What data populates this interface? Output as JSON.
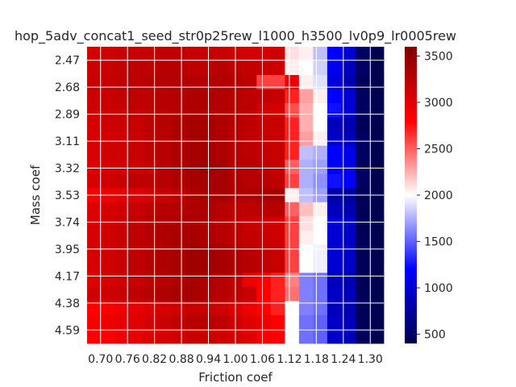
{
  "chart_data": {
    "type": "heatmap",
    "title": "hop_5adv_concat1_seed_str0p25rew_l1000_h3500_lv0p9_lr0005rew",
    "xlabel": "Friction coef",
    "ylabel": "Mass coef",
    "x_tick_labels": [
      "0.70",
      "0.76",
      "0.82",
      "0.88",
      "0.94",
      "1.00",
      "1.06",
      "1.12",
      "1.18",
      "1.24",
      "1.30"
    ],
    "y_tick_labels": [
      "2.47",
      "2.68",
      "2.89",
      "3.11",
      "3.32",
      "3.53",
      "3.74",
      "3.95",
      "4.17",
      "4.38",
      "4.59"
    ],
    "colorscale": "seismic",
    "clim": [
      400,
      3600
    ],
    "colorbar_ticks": [
      500,
      1000,
      1500,
      2000,
      2500,
      3000,
      3500
    ],
    "grid": true,
    "matrix": [
      [
        3080,
        3100,
        3150,
        3150,
        3150,
        3200,
        3200,
        3150,
        3150,
        3150,
        3100,
        3080,
        3050,
        3100,
        2100,
        2050,
        1800,
        1200,
        1000,
        500,
        420
      ],
      [
        3120,
        3150,
        3180,
        3200,
        3200,
        3250,
        3250,
        3200,
        3200,
        3250,
        3200,
        3180,
        3150,
        3100,
        2050,
        2000,
        1850,
        1100,
        900,
        500,
        420
      ],
      [
        3150,
        3160,
        3200,
        3220,
        3250,
        3280,
        3280,
        3280,
        3280,
        3280,
        3250,
        3200,
        2600,
        2600,
        2900,
        2050,
        1900,
        1050,
        850,
        450,
        420
      ],
      [
        3120,
        3150,
        3180,
        3200,
        3200,
        3250,
        3280,
        3300,
        3300,
        3280,
        3250,
        3200,
        3180,
        3150,
        2700,
        2300,
        2050,
        1200,
        1000,
        500,
        420
      ],
      [
        3100,
        3130,
        3150,
        3180,
        3200,
        3250,
        3280,
        3300,
        3300,
        3280,
        3250,
        3220,
        3100,
        3080,
        2550,
        2250,
        2000,
        1250,
        1000,
        500,
        420
      ],
      [
        3050,
        3100,
        3120,
        3150,
        3200,
        3250,
        3300,
        3350,
        3350,
        3300,
        3250,
        3200,
        3150,
        3150,
        2700,
        2250,
        2000,
        900,
        850,
        450,
        420
      ],
      [
        3050,
        3080,
        3100,
        3150,
        3200,
        3250,
        3300,
        3350,
        3350,
        3300,
        3250,
        3200,
        3150,
        3150,
        2700,
        2300,
        2050,
        950,
        900,
        500,
        420
      ],
      [
        3050,
        3100,
        3100,
        3150,
        3200,
        3250,
        3300,
        3350,
        3350,
        3300,
        3250,
        3220,
        3180,
        3150,
        2700,
        1800,
        1750,
        1200,
        1100,
        500,
        420
      ],
      [
        3000,
        3050,
        3080,
        3100,
        3150,
        3250,
        3300,
        3350,
        3400,
        3350,
        3280,
        3250,
        3200,
        3150,
        2500,
        1750,
        1700,
        1150,
        1100,
        500,
        420
      ],
      [
        3050,
        3100,
        3150,
        3200,
        3200,
        3250,
        3300,
        3350,
        3350,
        3350,
        3300,
        3250,
        3250,
        3200,
        2600,
        1750,
        1650,
        1250,
        1200,
        500,
        420
      ],
      [
        2850,
        2900,
        2950,
        3000,
        3050,
        3150,
        3200,
        3300,
        3350,
        3350,
        3300,
        3300,
        3350,
        3350,
        2050,
        1800,
        1700,
        800,
        750,
        450,
        420
      ],
      [
        3000,
        3050,
        3100,
        3150,
        3200,
        3250,
        3280,
        3300,
        3300,
        3250,
        3200,
        3200,
        3250,
        3250,
        2500,
        2200,
        2050,
        900,
        850,
        450,
        420
      ],
      [
        3050,
        3100,
        3150,
        3200,
        3250,
        3300,
        3320,
        3320,
        3300,
        3250,
        3200,
        3150,
        3100,
        3100,
        2600,
        2100,
        2000,
        1000,
        950,
        450,
        420
      ],
      [
        3050,
        3100,
        3150,
        3200,
        3250,
        3300,
        3350,
        3350,
        3300,
        3250,
        3200,
        3180,
        3150,
        3100,
        2600,
        2050,
        2000,
        1000,
        950,
        450,
        420
      ],
      [
        3050,
        3100,
        3150,
        3200,
        3250,
        3300,
        3350,
        3400,
        3400,
        3350,
        3300,
        3250,
        3200,
        3150,
        2600,
        2000,
        1950,
        1000,
        950,
        450,
        420
      ],
      [
        3050,
        3100,
        3150,
        3200,
        3250,
        3300,
        3350,
        3400,
        3400,
        3350,
        3300,
        3250,
        3200,
        3150,
        2600,
        2000,
        1950,
        1000,
        950,
        450,
        420
      ],
      [
        3000,
        3050,
        3100,
        3150,
        3200,
        3250,
        3300,
        3350,
        3300,
        3250,
        3200,
        2900,
        2800,
        2700,
        2400,
        1600,
        1550,
        900,
        850,
        450,
        420
      ],
      [
        3100,
        3120,
        3150,
        3200,
        3250,
        3300,
        3350,
        3350,
        3300,
        3250,
        3200,
        3150,
        2800,
        2700,
        2450,
        1600,
        1550,
        950,
        900,
        450,
        420
      ],
      [
        2800,
        2850,
        2900,
        2950,
        3000,
        3050,
        3100,
        3150,
        3150,
        3100,
        3000,
        2900,
        2800,
        2700,
        2000,
        1600,
        1550,
        900,
        850,
        450,
        420
      ],
      [
        2850,
        2900,
        2950,
        3000,
        3050,
        3150,
        3200,
        3250,
        3250,
        3200,
        3100,
        3000,
        2900,
        2800,
        2000,
        1550,
        1500,
        950,
        900,
        450,
        420
      ],
      [
        2800,
        2850,
        2900,
        2950,
        3000,
        3050,
        3100,
        3150,
        3150,
        3100,
        3050,
        3000,
        2850,
        2800,
        2000,
        1550,
        1500,
        950,
        900,
        450,
        420
      ]
    ]
  }
}
